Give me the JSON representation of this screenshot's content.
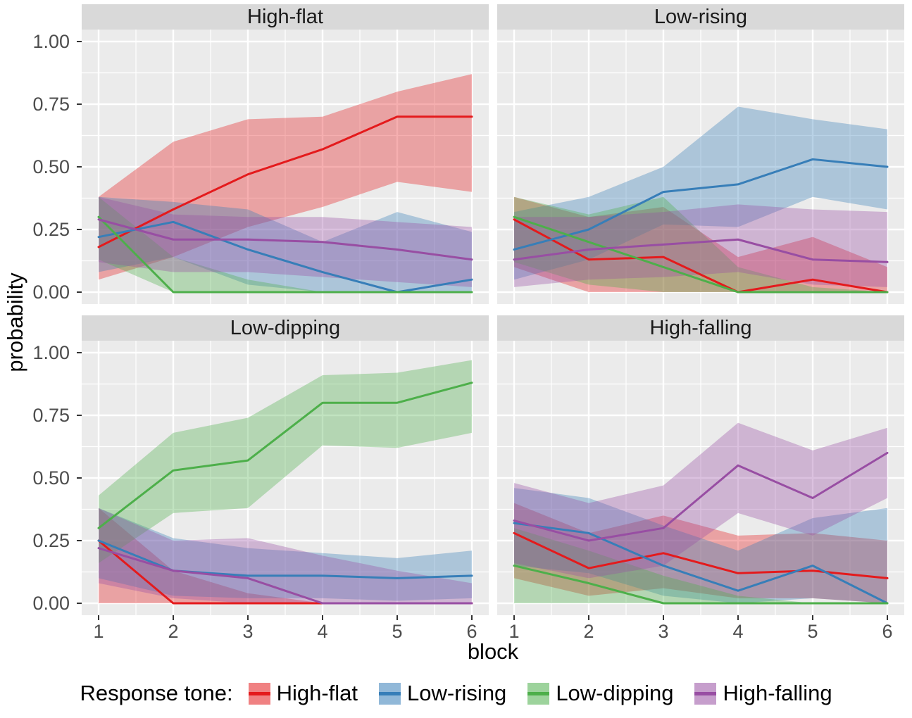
{
  "chart_data": {
    "type": "line",
    "facets": "2x2",
    "x": [
      1,
      2,
      3,
      4,
      5,
      6
    ],
    "xtick_labels": [
      "1",
      "2",
      "3",
      "4",
      "5",
      "6"
    ],
    "xlabel": "block",
    "ylabel": "probability",
    "ylim": [
      0,
      1
    ],
    "yticks": [
      0.0,
      0.25,
      0.5,
      0.75,
      1.0
    ],
    "ytick_labels": [
      "0.00",
      "0.25",
      "0.50",
      "0.75",
      "1.00"
    ],
    "grid": true,
    "panel_bg": "#EBEBEB",
    "strip_bg": "#D9D9D9",
    "gridline_color": "#FFFFFF",
    "ribbon_alpha": 0.35,
    "legend": {
      "title": "Response tone:",
      "position": "bottom",
      "entries": [
        {
          "label": "High-flat",
          "color": "#E41A1C"
        },
        {
          "label": "Low-rising",
          "color": "#377EB8"
        },
        {
          "label": "Low-dipping",
          "color": "#4DAF4A"
        },
        {
          "label": "High-falling",
          "color": "#984EA3"
        }
      ]
    },
    "panels": [
      {
        "title": "High-flat",
        "series": [
          {
            "name": "High-flat",
            "color": "#E41A1C",
            "values": [
              0.18,
              0.33,
              0.47,
              0.57,
              0.7,
              0.7
            ],
            "lower": [
              0.05,
              0.14,
              0.26,
              0.34,
              0.44,
              0.4
            ],
            "upper": [
              0.38,
              0.6,
              0.69,
              0.7,
              0.8,
              0.87
            ]
          },
          {
            "name": "Low-rising",
            "color": "#377EB8",
            "values": [
              0.22,
              0.28,
              0.17,
              0.08,
              0.0,
              0.05
            ],
            "lower": [
              0.08,
              0.14,
              0.03,
              0.0,
              0.0,
              0.0
            ],
            "upper": [
              0.38,
              0.36,
              0.33,
              0.2,
              0.32,
              0.24
            ]
          },
          {
            "name": "Low-dipping",
            "color": "#4DAF4A",
            "values": [
              0.3,
              0.0,
              0.0,
              0.0,
              0.0,
              0.0
            ],
            "lower": [
              0.13,
              0.0,
              0.0,
              0.0,
              0.0,
              0.0
            ],
            "upper": [
              0.38,
              0.14,
              0.05,
              0.0,
              0.0,
              0.0
            ]
          },
          {
            "name": "High-falling",
            "color": "#984EA3",
            "values": [
              0.29,
              0.21,
              0.21,
              0.2,
              0.17,
              0.13
            ],
            "lower": [
              0.12,
              0.08,
              0.08,
              0.06,
              0.04,
              0.02
            ],
            "upper": [
              0.38,
              0.31,
              0.3,
              0.3,
              0.28,
              0.26
            ]
          }
        ]
      },
      {
        "title": "Low-rising",
        "series": [
          {
            "name": "High-flat",
            "color": "#E41A1C",
            "values": [
              0.29,
              0.13,
              0.14,
              0.0,
              0.05,
              0.0
            ],
            "lower": [
              0.1,
              0.0,
              0.0,
              0.0,
              0.0,
              0.0
            ],
            "upper": [
              0.38,
              0.3,
              0.34,
              0.14,
              0.22,
              0.1
            ]
          },
          {
            "name": "Low-rising",
            "color": "#377EB8",
            "values": [
              0.17,
              0.25,
              0.4,
              0.43,
              0.53,
              0.5
            ],
            "lower": [
              0.05,
              0.13,
              0.27,
              0.26,
              0.38,
              0.33
            ],
            "upper": [
              0.32,
              0.38,
              0.5,
              0.74,
              0.69,
              0.65
            ]
          },
          {
            "name": "Low-dipping",
            "color": "#4DAF4A",
            "values": [
              0.3,
              0.2,
              0.1,
              0.0,
              0.0,
              0.0
            ],
            "lower": [
              0.12,
              0.03,
              0.0,
              0.0,
              0.0,
              0.0
            ],
            "upper": [
              0.38,
              0.31,
              0.38,
              0.1,
              0.02,
              0.0
            ]
          },
          {
            "name": "High-falling",
            "color": "#984EA3",
            "values": [
              0.13,
              0.17,
              0.19,
              0.21,
              0.13,
              0.12
            ],
            "lower": [
              0.02,
              0.05,
              0.06,
              0.08,
              0.03,
              0.02
            ],
            "upper": [
              0.3,
              0.3,
              0.32,
              0.35,
              0.33,
              0.32
            ]
          }
        ]
      },
      {
        "title": "Low-dipping",
        "series": [
          {
            "name": "High-flat",
            "color": "#E41A1C",
            "values": [
              0.25,
              0.0,
              0.0,
              0.0,
              0.0,
              0.0
            ],
            "lower": [
              0.0,
              0.0,
              0.0,
              0.0,
              0.0,
              0.0
            ],
            "upper": [
              0.38,
              0.13,
              0.04,
              0.0,
              0.0,
              0.0
            ]
          },
          {
            "name": "Low-rising",
            "color": "#377EB8",
            "values": [
              0.25,
              0.13,
              0.11,
              0.11,
              0.1,
              0.11
            ],
            "lower": [
              0.1,
              0.03,
              0.02,
              0.02,
              0.01,
              0.02
            ],
            "upper": [
              0.38,
              0.26,
              0.22,
              0.2,
              0.18,
              0.21
            ]
          },
          {
            "name": "Low-dipping",
            "color": "#4DAF4A",
            "values": [
              0.3,
              0.53,
              0.57,
              0.8,
              0.8,
              0.88
            ],
            "lower": [
              0.16,
              0.36,
              0.38,
              0.63,
              0.62,
              0.68
            ],
            "upper": [
              0.43,
              0.68,
              0.74,
              0.91,
              0.92,
              0.97
            ]
          },
          {
            "name": "High-falling",
            "color": "#984EA3",
            "values": [
              0.22,
              0.13,
              0.1,
              0.0,
              0.0,
              0.0
            ],
            "lower": [
              0.08,
              0.02,
              0.0,
              0.0,
              0.0,
              0.0
            ],
            "upper": [
              0.38,
              0.25,
              0.26,
              0.19,
              0.13,
              0.08
            ]
          }
        ]
      },
      {
        "title": "High-falling",
        "series": [
          {
            "name": "High-flat",
            "color": "#E41A1C",
            "values": [
              0.28,
              0.14,
              0.2,
              0.12,
              0.13,
              0.1
            ],
            "lower": [
              0.1,
              0.03,
              0.06,
              0.02,
              0.02,
              0.0
            ],
            "upper": [
              0.4,
              0.28,
              0.35,
              0.27,
              0.28,
              0.25
            ]
          },
          {
            "name": "Low-rising",
            "color": "#377EB8",
            "values": [
              0.32,
              0.28,
              0.15,
              0.05,
              0.15,
              0.0
            ],
            "lower": [
              0.15,
              0.12,
              0.03,
              0.0,
              0.02,
              0.0
            ],
            "upper": [
              0.46,
              0.42,
              0.31,
              0.21,
              0.34,
              0.38
            ]
          },
          {
            "name": "Low-dipping",
            "color": "#4DAF4A",
            "values": [
              0.15,
              0.08,
              0.0,
              0.0,
              0.0,
              0.0
            ],
            "lower": [
              0.0,
              0.0,
              0.0,
              0.0,
              0.0,
              0.0
            ],
            "upper": [
              0.3,
              0.21,
              0.11,
              0.03,
              0.0,
              0.0
            ]
          },
          {
            "name": "High-falling",
            "color": "#984EA3",
            "values": [
              0.33,
              0.25,
              0.3,
              0.55,
              0.42,
              0.6
            ],
            "lower": [
              0.16,
              0.1,
              0.15,
              0.36,
              0.27,
              0.42
            ],
            "upper": [
              0.48,
              0.4,
              0.47,
              0.72,
              0.61,
              0.7
            ]
          }
        ]
      }
    ]
  }
}
